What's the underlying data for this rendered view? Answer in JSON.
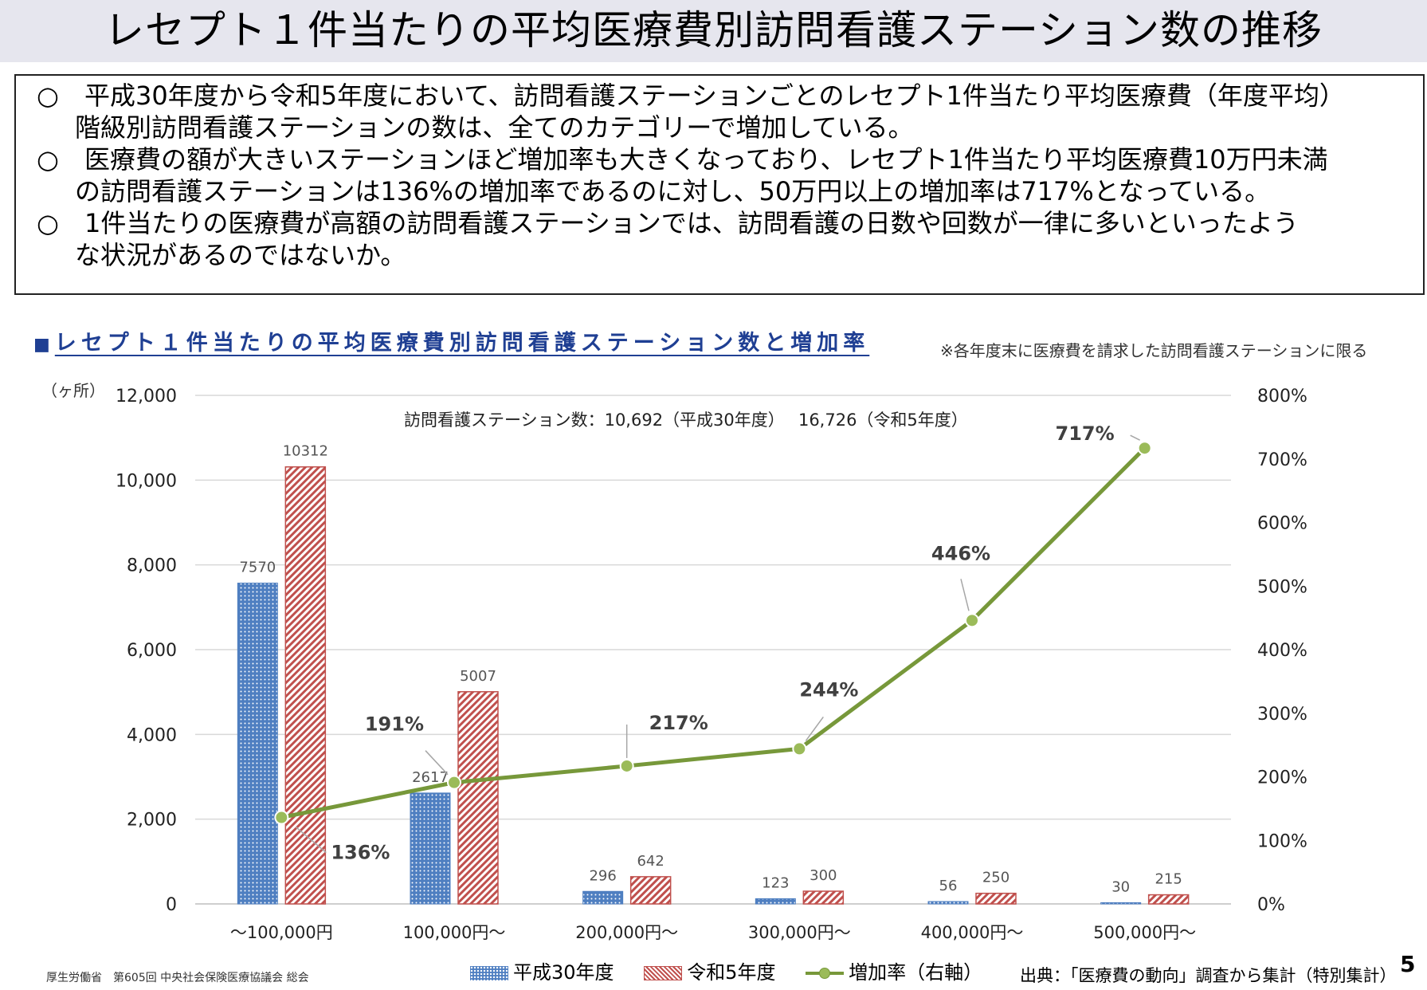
{
  "title": "レセプト１件当たりの平均医療費別訪問看護ステーション数の推移",
  "summary": {
    "bullet": "○",
    "lines": [
      "平成30年度から令和5年度において、訪問看護ステーションごとのレセプト1件当たり平均医療費（年度平均）",
      "階級別訪問看護ステーションの数は、全てのカテゴリーで増加している。",
      "医療費の額が大きいステーションほど増加率も大きくなっており、レセプト1件当たり平均医療費10万円未満",
      "の訪問看護ステーションは136%の増加率であるのに対し、50万円以上の増加率は717%となっている。",
      "1件当たりの医療費が高額の訪問看護ステーションでは、訪問看護の日数や回数が一律に多いといったよう",
      "な状況があるのではないか。"
    ]
  },
  "section_heading": {
    "marker": "■",
    "text": "レセプト１件当たりの平均医療費別訪問看護ステーション数と増加率"
  },
  "note": "※各年度末に医療費を請求した訪問看護ステーションに限る",
  "footer": {
    "left": "厚生労働省　第605回 中央社会保険医療協議会 総会",
    "source": "出典：「医療費の動向」調査から集計（特別集計）",
    "page": "5"
  },
  "colors": {
    "h30": "#4f7fc1",
    "r5": "#c0504d",
    "rate_line": "#77983a",
    "rate_marker": "#9bbb59",
    "heading": "#1f3f93"
  },
  "chart_data": {
    "type": "bar",
    "annotation": "訪問看護ステーション数：10,692（平成30年度）　 16,726（令和5年度）",
    "y_unit_label": "（ヶ所）",
    "categories": [
      "～100,000円",
      "100,000円～",
      "200,000円～",
      "300,000円～",
      "400,000円～",
      "500,000円～"
    ],
    "ylim": [
      0,
      12000
    ],
    "y_ticks": [
      "0",
      "2,000",
      "4,000",
      "6,000",
      "8,000",
      "10,000",
      "12,000"
    ],
    "y2lim": [
      0,
      800
    ],
    "y2_ticks": [
      "0%",
      "100%",
      "200%",
      "300%",
      "400%",
      "500%",
      "600%",
      "700%",
      "800%"
    ],
    "grid": true,
    "legend_position": "bottom",
    "series": [
      {
        "name": "平成30年度",
        "type": "bar",
        "axis": "left",
        "values": [
          7570,
          2617,
          296,
          123,
          56,
          30
        ],
        "labels": [
          "7570",
          "2617",
          "296",
          "123",
          "56",
          "30"
        ]
      },
      {
        "name": "令和5年度",
        "type": "bar",
        "axis": "left",
        "values": [
          10312,
          5007,
          642,
          300,
          250,
          215
        ],
        "labels": [
          "10312",
          "5007",
          "642",
          "300",
          "250",
          "215"
        ]
      },
      {
        "name": "増加率（右軸）",
        "type": "line",
        "axis": "right",
        "values": [
          136,
          191,
          217,
          244,
          446,
          717
        ],
        "labels": [
          "136%",
          "191%",
          "217%",
          "244%",
          "446%",
          "717%"
        ]
      }
    ]
  }
}
